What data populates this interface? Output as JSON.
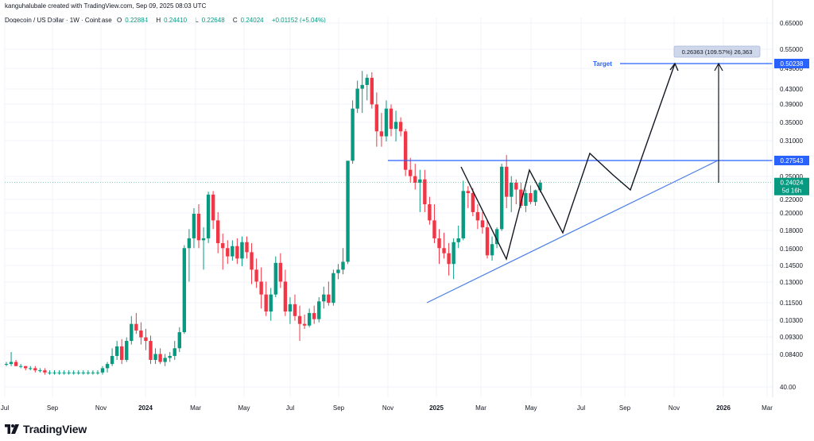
{
  "header": {
    "credit": "kanguhalubale created with TradingView.com, Sep 09, 2025 08:03 UTC",
    "symbol": "Dogecoin / US Dollar · 1W · Coinbase",
    "ohlc": [
      {
        "label": "O",
        "value": "0.22884"
      },
      {
        "label": "H",
        "value": "0.24410"
      },
      {
        "label": "L",
        "value": "0.22648"
      },
      {
        "label": "C",
        "value": "0.24024"
      }
    ],
    "change": "+0.01152 (+5.04%)"
  },
  "footer": {
    "brand": "TradingView",
    "logo_icon": "tradingview-logo-icon"
  },
  "colors": {
    "up": "#089981",
    "down": "#f23645",
    "line": "#2962ff",
    "trend": "#4a7ee8",
    "path": "#131722"
  },
  "chart_data": {
    "type": "candlestick",
    "y_scale": "log",
    "y_ticks": [
      "0.65000",
      "0.55000",
      "0.49000",
      "0.43000",
      "0.39000",
      "0.35000",
      "0.31000",
      "0.25000",
      "0.22000",
      "0.20000",
      "0.18000",
      "0.16000",
      "0.14500",
      "0.13000",
      "0.11500",
      "0.10300",
      "0.09300",
      "0.08400",
      "40.00"
    ],
    "x_ticks": [
      "Jul",
      "Sep",
      "Nov",
      "2024",
      "Mar",
      "May",
      "Jul",
      "Sep",
      "Nov",
      "2025",
      "Mar",
      "May",
      "Jul",
      "Sep",
      "Nov",
      "2026",
      "Mar"
    ],
    "price_labels": {
      "target": "0.50238",
      "resistance": "0.27543",
      "current": "0.24024",
      "countdown": "5d 16h"
    },
    "annotations": {
      "target_label": "Target",
      "measure": "0.26363 (109.57%) 26,363"
    },
    "candles": [
      [
        0.078,
        0.079,
        0.077,
        0.078
      ],
      [
        0.078,
        0.084,
        0.077,
        0.079
      ],
      [
        0.079,
        0.08,
        0.077,
        0.077
      ],
      [
        0.077,
        0.078,
        0.076,
        0.077
      ],
      [
        0.077,
        0.077,
        0.075,
        0.076
      ],
      [
        0.076,
        0.077,
        0.075,
        0.076
      ],
      [
        0.076,
        0.077,
        0.074,
        0.075
      ],
      [
        0.075,
        0.076,
        0.074,
        0.075
      ],
      [
        0.075,
        0.076,
        0.073,
        0.074
      ],
      [
        0.074,
        0.075,
        0.073,
        0.074
      ],
      [
        0.074,
        0.075,
        0.073,
        0.074
      ],
      [
        0.074,
        0.075,
        0.073,
        0.074
      ],
      [
        0.074,
        0.075,
        0.073,
        0.074
      ],
      [
        0.074,
        0.075,
        0.073,
        0.074
      ],
      [
        0.074,
        0.075,
        0.073,
        0.074
      ],
      [
        0.074,
        0.075,
        0.073,
        0.074
      ],
      [
        0.074,
        0.075,
        0.073,
        0.074
      ],
      [
        0.074,
        0.075,
        0.073,
        0.074
      ],
      [
        0.074,
        0.075,
        0.073,
        0.074
      ],
      [
        0.074,
        0.075,
        0.073,
        0.074
      ],
      [
        0.074,
        0.077,
        0.073,
        0.076
      ],
      [
        0.076,
        0.079,
        0.074,
        0.078
      ],
      [
        0.078,
        0.086,
        0.077,
        0.082
      ],
      [
        0.082,
        0.09,
        0.08,
        0.087
      ],
      [
        0.087,
        0.091,
        0.078,
        0.08
      ],
      [
        0.08,
        0.092,
        0.079,
        0.09
      ],
      [
        0.09,
        0.105,
        0.088,
        0.1
      ],
      [
        0.1,
        0.107,
        0.094,
        0.096
      ],
      [
        0.096,
        0.101,
        0.088,
        0.092
      ],
      [
        0.092,
        0.097,
        0.085,
        0.09
      ],
      [
        0.09,
        0.093,
        0.078,
        0.08
      ],
      [
        0.08,
        0.086,
        0.078,
        0.083
      ],
      [
        0.083,
        0.086,
        0.078,
        0.079
      ],
      [
        0.079,
        0.083,
        0.077,
        0.081
      ],
      [
        0.081,
        0.084,
        0.079,
        0.082
      ],
      [
        0.082,
        0.09,
        0.08,
        0.086
      ],
      [
        0.086,
        0.098,
        0.084,
        0.095
      ],
      [
        0.095,
        0.163,
        0.094,
        0.16
      ],
      [
        0.16,
        0.18,
        0.13,
        0.17
      ],
      [
        0.17,
        0.205,
        0.16,
        0.198
      ],
      [
        0.198,
        0.21,
        0.16,
        0.168
      ],
      [
        0.168,
        0.182,
        0.14,
        0.17
      ],
      [
        0.17,
        0.227,
        0.165,
        0.223
      ],
      [
        0.223,
        0.228,
        0.18,
        0.19
      ],
      [
        0.19,
        0.2,
        0.155,
        0.165
      ],
      [
        0.165,
        0.175,
        0.14,
        0.16
      ],
      [
        0.16,
        0.168,
        0.145,
        0.152
      ],
      [
        0.152,
        0.168,
        0.148,
        0.162
      ],
      [
        0.162,
        0.17,
        0.145,
        0.15
      ],
      [
        0.15,
        0.172,
        0.143,
        0.166
      ],
      [
        0.166,
        0.172,
        0.15,
        0.156
      ],
      [
        0.156,
        0.165,
        0.128,
        0.14
      ],
      [
        0.14,
        0.15,
        0.125,
        0.13
      ],
      [
        0.13,
        0.142,
        0.11,
        0.12
      ],
      [
        0.12,
        0.13,
        0.105,
        0.108
      ],
      [
        0.108,
        0.125,
        0.102,
        0.12
      ],
      [
        0.12,
        0.152,
        0.118,
        0.146
      ],
      [
        0.146,
        0.155,
        0.125,
        0.13
      ],
      [
        0.13,
        0.14,
        0.105,
        0.108
      ],
      [
        0.108,
        0.118,
        0.1,
        0.113
      ],
      [
        0.113,
        0.12,
        0.102,
        0.105
      ],
      [
        0.105,
        0.112,
        0.09,
        0.1
      ],
      [
        0.1,
        0.106,
        0.097,
        0.099
      ],
      [
        0.099,
        0.11,
        0.098,
        0.107
      ],
      [
        0.107,
        0.112,
        0.1,
        0.103
      ],
      [
        0.103,
        0.118,
        0.101,
        0.115
      ],
      [
        0.115,
        0.126,
        0.11,
        0.12
      ],
      [
        0.12,
        0.13,
        0.112,
        0.114
      ],
      [
        0.114,
        0.14,
        0.112,
        0.137
      ],
      [
        0.137,
        0.145,
        0.132,
        0.14
      ],
      [
        0.14,
        0.16,
        0.136,
        0.147
      ],
      [
        0.147,
        0.275,
        0.145,
        0.275
      ],
      [
        0.275,
        0.4,
        0.27,
        0.38
      ],
      [
        0.38,
        0.452,
        0.37,
        0.43
      ],
      [
        0.43,
        0.48,
        0.37,
        0.44
      ],
      [
        0.44,
        0.47,
        0.4,
        0.46
      ],
      [
        0.46,
        0.476,
        0.38,
        0.39
      ],
      [
        0.39,
        0.42,
        0.3,
        0.33
      ],
      [
        0.33,
        0.37,
        0.3,
        0.32
      ],
      [
        0.32,
        0.4,
        0.31,
        0.38
      ],
      [
        0.38,
        0.39,
        0.32,
        0.335
      ],
      [
        0.335,
        0.375,
        0.31,
        0.35
      ],
      [
        0.35,
        0.36,
        0.32,
        0.33
      ],
      [
        0.33,
        0.335,
        0.25,
        0.26
      ],
      [
        0.26,
        0.28,
        0.24,
        0.25
      ],
      [
        0.25,
        0.27,
        0.23,
        0.24
      ],
      [
        0.24,
        0.26,
        0.2,
        0.245
      ],
      [
        0.245,
        0.26,
        0.2,
        0.21
      ],
      [
        0.21,
        0.22,
        0.185,
        0.19
      ],
      [
        0.19,
        0.21,
        0.165,
        0.17
      ],
      [
        0.17,
        0.18,
        0.145,
        0.16
      ],
      [
        0.16,
        0.176,
        0.15,
        0.155
      ],
      [
        0.155,
        0.165,
        0.135,
        0.145
      ],
      [
        0.145,
        0.17,
        0.132,
        0.166
      ],
      [
        0.166,
        0.184,
        0.16,
        0.17
      ],
      [
        0.17,
        0.243,
        0.168,
        0.228
      ],
      [
        0.228,
        0.235,
        0.205,
        0.225
      ],
      [
        0.225,
        0.232,
        0.195,
        0.2
      ],
      [
        0.2,
        0.21,
        0.18,
        0.19
      ],
      [
        0.19,
        0.2,
        0.175,
        0.182
      ],
      [
        0.182,
        0.19,
        0.15,
        0.153
      ],
      [
        0.153,
        0.172,
        0.148,
        0.164
      ],
      [
        0.164,
        0.182,
        0.16,
        0.18
      ],
      [
        0.18,
        0.27,
        0.178,
        0.265
      ],
      [
        0.265,
        0.285,
        0.205,
        0.22
      ],
      [
        0.22,
        0.25,
        0.2,
        0.24
      ],
      [
        0.24,
        0.245,
        0.21,
        0.23
      ],
      [
        0.23,
        0.24,
        0.205,
        0.208
      ],
      [
        0.208,
        0.23,
        0.2,
        0.225
      ],
      [
        0.225,
        0.236,
        0.21,
        0.213
      ],
      [
        0.213,
        0.23,
        0.208,
        0.229
      ],
      [
        0.229,
        0.244,
        0.226,
        0.24
      ]
    ]
  }
}
